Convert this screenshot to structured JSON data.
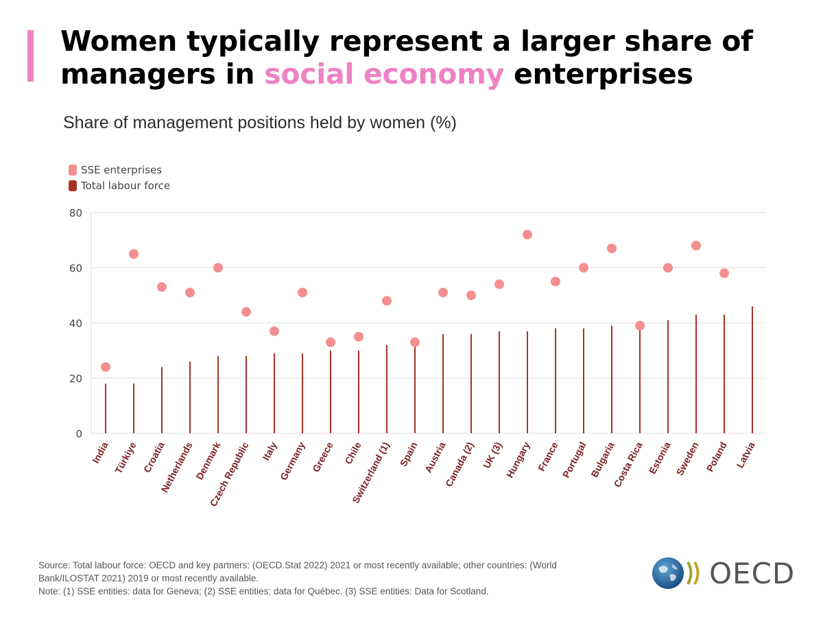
{
  "header": {
    "title_part1": "Women typically represent a larger share of managers in ",
    "title_highlight": "social economy",
    "title_part2": " enterprises",
    "accent_color": "#ee82c4"
  },
  "chart_data": {
    "type": "scatter",
    "subtitle": "Share of management positions held by women (%)",
    "categories": [
      "India",
      "Türkiye",
      "Croatia",
      "Netherlands",
      "Denmark",
      "Czech Republic",
      "Italy",
      "Germany",
      "Greece",
      "Chile",
      "Switzerland (1)",
      "Spain",
      "Austria",
      "Canada (2)",
      "UK (3)",
      "Hungary",
      "France",
      "Portugal",
      "Bulgaria",
      "Costa Rica",
      "Estonia",
      "Sweden",
      "Poland",
      "Latvia"
    ],
    "series": [
      {
        "name": "SSE enterprises",
        "mark": "dot",
        "color": "#f48f8f",
        "values": [
          24,
          65,
          53,
          51,
          60,
          44,
          37,
          51,
          33,
          35,
          48,
          33,
          51,
          50,
          54,
          72,
          55,
          60,
          67,
          39,
          60,
          68,
          58,
          null
        ]
      },
      {
        "name": "Total labour force",
        "mark": "stem",
        "color": "#a93226",
        "values": [
          18,
          18,
          24,
          26,
          28,
          28,
          29,
          29,
          30,
          30,
          32,
          32,
          36,
          36,
          37,
          37,
          38,
          38,
          39,
          39,
          41,
          43,
          43,
          46
        ]
      }
    ],
    "ylim": [
      0,
      80
    ],
    "yticks": [
      0,
      20,
      40,
      60,
      80
    ],
    "grid": true,
    "legend_position": "top-left"
  },
  "footnote": {
    "source_line1": "Source: Total labour force: OECD and key partners: (OECD.Stat 2022) 2021 or most recently available; other countries: (World",
    "source_line2": "Bank/ILOSTAT 2021) 2019 or most recently available.",
    "note": "Note: (1) SSE entities: data for Geneva;  (2) SSE entities: data for Québec. (3) SSE entities: Data for Scotland."
  },
  "logo": {
    "text": "OECD"
  }
}
